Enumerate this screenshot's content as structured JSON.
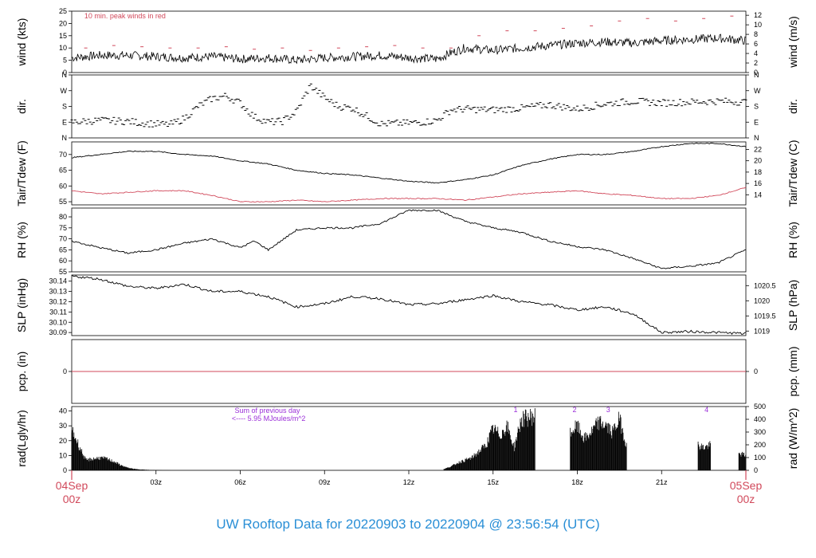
{
  "title": "UW Rooftop Data for 20220903  to  20220904 @ 23:56:54  (UTC)",
  "colors": {
    "line": "#000000",
    "accent": "#d1495b",
    "radNote": "#9b30d9",
    "title": "#2a8fd6"
  },
  "x_axis": {
    "minor_ticks": [
      {
        "hour": 3,
        "label": "03z"
      },
      {
        "hour": 6,
        "label": "06z"
      },
      {
        "hour": 9,
        "label": "09z"
      },
      {
        "hour": 12,
        "label": "12z"
      },
      {
        "hour": 15,
        "label": "15z"
      },
      {
        "hour": 18,
        "label": "18z"
      },
      {
        "hour": 21,
        "label": "21z"
      }
    ],
    "start": {
      "line1": "04Sep",
      "line2": "00z"
    },
    "end": {
      "line1": "05Sep",
      "line2": "00z"
    },
    "range_hours": [
      0,
      24
    ]
  },
  "chart_data": [
    {
      "type": "line",
      "name": "wind",
      "ylabel": "wind (kts)",
      "ylabel2": "wind (m/s)",
      "ylim": [
        0,
        25
      ],
      "yticks": [
        0,
        5,
        10,
        15,
        20,
        25
      ],
      "ylim2": [
        0,
        12.86
      ],
      "yticks2": [
        0,
        2,
        4,
        6,
        8,
        10,
        12
      ],
      "annotation": "10 min. peak winds in red",
      "x": [
        0,
        1,
        2,
        3,
        4,
        5,
        6,
        7,
        8,
        9,
        10,
        11,
        12,
        13,
        13.5,
        14,
        15,
        16,
        17,
        18,
        19,
        20,
        21,
        22,
        23,
        24
      ],
      "y": [
        6,
        7,
        7,
        6.5,
        6,
        6.5,
        5.5,
        6,
        5,
        6,
        6.5,
        7,
        6,
        5.5,
        8,
        10,
        9,
        10,
        11,
        12,
        12.5,
        12,
        13,
        13.5,
        14,
        13
      ],
      "peaks_x": [
        0.5,
        1.5,
        2.5,
        3.5,
        4.5,
        5.5,
        6.5,
        7.5,
        8.5,
        9.5,
        10.5,
        11.5,
        12.5,
        13.5,
        14.5,
        15.5,
        16.5,
        17.5,
        18.5,
        19.5,
        20.5,
        21.5,
        22.5,
        23.5
      ],
      "peaks_y": [
        10,
        11,
        10.5,
        10,
        10,
        10.5,
        9.5,
        10,
        9,
        10,
        10.5,
        11,
        10,
        10,
        15,
        17,
        17,
        18,
        19,
        21,
        22,
        21,
        22,
        23
      ]
    },
    {
      "type": "scatter",
      "name": "dir",
      "ylabel": "dir.",
      "ylabel2": "dir.",
      "ylim": [
        0,
        360
      ],
      "yticks": [
        0,
        90,
        180,
        270,
        360
      ],
      "ytick_labels": [
        "N",
        "E",
        "S",
        "W",
        "N"
      ],
      "x": [
        0,
        1,
        2,
        2.5,
        3.5,
        4,
        4.5,
        5,
        5.5,
        6,
        6.5,
        7,
        7.5,
        8,
        8.5,
        9,
        9.5,
        10,
        11,
        12,
        12.5,
        13,
        13.5,
        14,
        15,
        16,
        17,
        18,
        19,
        20,
        21,
        22,
        23,
        24
      ],
      "y": [
        90,
        100,
        95,
        85,
        75,
        110,
        180,
        225,
        240,
        200,
        120,
        90,
        95,
        150,
        300,
        230,
        180,
        170,
        80,
        85,
        90,
        100,
        160,
        165,
        160,
        170,
        190,
        165,
        195,
        210,
        200,
        205,
        210,
        205
      ]
    },
    {
      "type": "line",
      "name": "temp",
      "ylabel": "Tair/Tdew (F)",
      "ylabel2": "Tair/Tdew (C)",
      "ylim": [
        54,
        74
      ],
      "yticks": [
        55,
        60,
        65,
        70
      ],
      "ylim2": [
        12.22,
        23.33
      ],
      "yticks2": [
        14,
        16,
        18,
        20,
        22
      ],
      "series": [
        {
          "name": "Tair",
          "x": [
            0,
            1,
            2,
            3,
            4,
            5,
            6,
            7,
            8,
            9,
            10,
            11,
            12,
            13,
            14,
            15,
            16,
            17,
            18,
            19,
            20,
            21,
            22,
            23,
            24
          ],
          "y": [
            69,
            70,
            71,
            71,
            70,
            69.5,
            68,
            67,
            65,
            64,
            63.5,
            62.5,
            61.5,
            61,
            62,
            63.5,
            66.5,
            68.5,
            70,
            70,
            71,
            72.5,
            73.5,
            73.5,
            72.5
          ]
        },
        {
          "name": "Tdew",
          "x": [
            0,
            1,
            2,
            3,
            4,
            5,
            6,
            7,
            8,
            9,
            10,
            11,
            12,
            13,
            14,
            15,
            16,
            17,
            18,
            19,
            20,
            21,
            22,
            23,
            24
          ],
          "y": [
            58.5,
            57.5,
            58,
            58.5,
            58.5,
            57,
            55,
            55,
            55.5,
            55,
            55.5,
            56,
            56,
            56,
            55.5,
            56.5,
            57.5,
            58,
            58.5,
            57.5,
            57,
            56,
            56,
            57,
            59.5
          ]
        }
      ]
    },
    {
      "type": "line",
      "name": "rh",
      "ylabel": "RH (%)",
      "ylabel2": "RH (%)",
      "ylim": [
        55,
        84
      ],
      "yticks": [
        55,
        60,
        65,
        70,
        75,
        80
      ],
      "x": [
        0,
        1,
        2,
        3,
        4,
        5,
        6,
        6.5,
        7,
        8,
        9,
        10,
        11,
        12,
        13,
        14,
        15,
        16,
        17,
        18,
        19,
        20,
        21,
        22,
        23,
        24
      ],
      "y": [
        69,
        66,
        63.5,
        65,
        68,
        70,
        66,
        69,
        65,
        74,
        75,
        75,
        77,
        83,
        83,
        78,
        75,
        73,
        69,
        66.5,
        65,
        61,
        56.5,
        57.5,
        59,
        65
      ]
    },
    {
      "type": "line",
      "name": "slp",
      "ylabel": "SLP (inHg)",
      "ylabel2": "SLP (hPa)",
      "ylim": [
        30.087,
        30.146
      ],
      "yticks": [
        30.09,
        30.1,
        30.11,
        30.12,
        30.13,
        30.14
      ],
      "ytick_labels": [
        "30.09",
        "30.10",
        "30.11",
        "30.12",
        "30.13",
        "30.14"
      ],
      "ylim2": [
        1018.85,
        1020.85
      ],
      "yticks2": [
        1019,
        1019.5,
        1020,
        1020.5
      ],
      "ytick_labels2": [
        "1019",
        "1019.5",
        "1020",
        "1020.5"
      ],
      "x": [
        0,
        1,
        2,
        3,
        4,
        5,
        6,
        7,
        8,
        9,
        10,
        11,
        12,
        13,
        14,
        15,
        16,
        17,
        18,
        19,
        20,
        21,
        22,
        23,
        24
      ],
      "y": [
        30.145,
        30.142,
        30.135,
        30.133,
        30.137,
        30.13,
        30.13,
        30.125,
        30.115,
        30.118,
        30.125,
        30.123,
        30.117,
        30.118,
        30.122,
        30.126,
        30.12,
        30.117,
        30.112,
        30.115,
        30.108,
        30.09,
        30.091,
        30.09,
        30.089
      ]
    },
    {
      "type": "line",
      "name": "pcp",
      "ylabel": "pcp. (in)",
      "ylabel2": "pcp. (mm)",
      "ylim": [
        -1,
        1
      ],
      "yticks": [
        0
      ],
      "yticks2": [
        0
      ],
      "x": [
        0,
        24
      ],
      "y": [
        0,
        0
      ]
    },
    {
      "type": "bar",
      "name": "rad",
      "ylabel": "rad(Lgly/hr)",
      "ylabel2": "rad (W/m^2)",
      "ylim": [
        0,
        43
      ],
      "yticks": [
        0,
        10,
        20,
        30,
        40
      ],
      "ylim2": [
        0,
        500
      ],
      "yticks2": [
        0,
        100,
        200,
        300,
        400,
        500
      ],
      "note_line1": "Sum of previous day",
      "note_line2": "<---- 5.95 MJoules/m^2",
      "markers": [
        {
          "hour": 15.8,
          "label": "1"
        },
        {
          "hour": 17.9,
          "label": "2"
        },
        {
          "hour": 19.1,
          "label": "3"
        },
        {
          "hour": 22.6,
          "label": "4"
        }
      ],
      "x": [
        0,
        0.25,
        0.5,
        0.75,
        1,
        1.25,
        1.5,
        1.75,
        2,
        2.25,
        2.5,
        2.75,
        3,
        3.25,
        3.5,
        13.25,
        13.5,
        13.75,
        14,
        14.25,
        14.5,
        14.75,
        15,
        15.25,
        15.5,
        15.75,
        16,
        16.25,
        16.5,
        17.75,
        18,
        18.25,
        18.5,
        18.75,
        19,
        19.25,
        19.5,
        19.75,
        22.3,
        22.5,
        22.75,
        23.75,
        24
      ],
      "values": [
        32,
        20,
        8,
        9,
        10,
        9,
        7,
        4,
        2,
        1,
        0.6,
        0.3,
        0.2,
        0.1,
        0.05,
        1,
        3,
        6,
        8,
        10,
        15,
        20,
        33,
        28,
        35,
        18,
        40,
        42,
        43,
        30,
        35,
        25,
        30,
        38,
        36,
        30,
        41,
        20,
        20,
        18,
        20,
        13,
        12
      ]
    }
  ]
}
